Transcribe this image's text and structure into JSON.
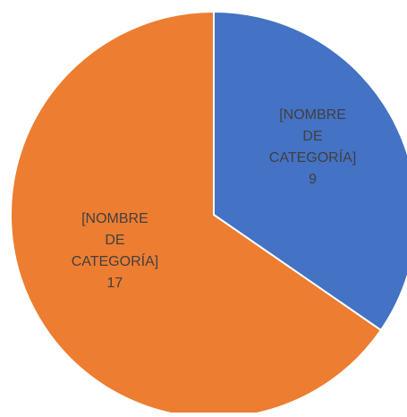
{
  "chart_data": {
    "type": "pie",
    "categories": [
      "[NOMBRE DE CATEGORÍA]",
      "[NOMBRE DE CATEGORÍA]"
    ],
    "values": [
      9,
      17
    ],
    "colors": [
      "#4472c4",
      "#ed7d31"
    ]
  }
}
